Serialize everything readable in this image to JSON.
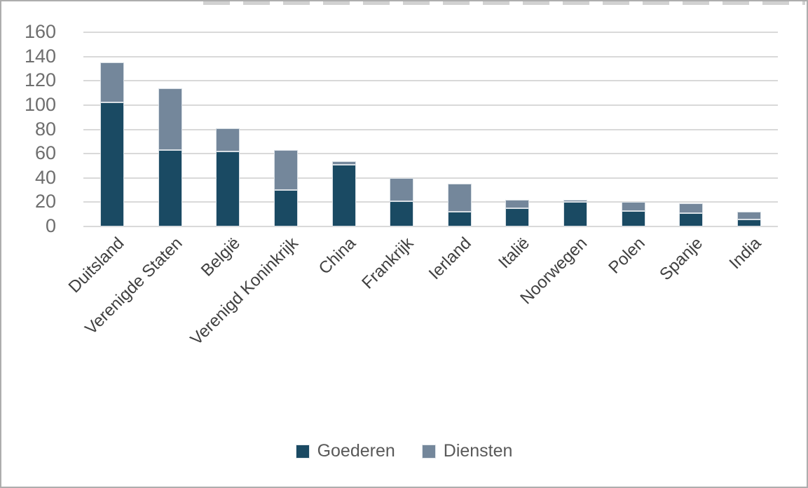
{
  "chart": {
    "background": "#FFFFFF",
    "frame_border_color": "#ADADAD",
    "gridline_color": "#D9D9D9",
    "ytick_color": "#6E6E6E",
    "category_label_color": "#404040",
    "legend_text_color": "#595959"
  },
  "chart_data": {
    "type": "bar",
    "variant": "stacked-column",
    "title": "",
    "xlabel": "",
    "ylabel": "",
    "categories": [
      "Duitsland",
      "Verenigde Staten",
      "België",
      "Verenigd Koninkrijk",
      "China",
      "Frankrijk",
      "Ierland",
      "Italië",
      "Noorwegen",
      "Polen",
      "Spanje",
      "India"
    ],
    "series": [
      {
        "name": "Goederen",
        "color": "#1A4A63",
        "values": [
          102,
          63,
          62,
          30,
          51,
          21,
          12,
          15,
          20,
          13,
          11,
          6
        ]
      },
      {
        "name": "Diensten",
        "color": "#74879B",
        "values": [
          33,
          51,
          19,
          33,
          3,
          19,
          23,
          7,
          2,
          7,
          8,
          6
        ]
      }
    ],
    "ylim": [
      0,
      160
    ],
    "yticks": [
      0,
      20,
      40,
      60,
      80,
      100,
      120,
      140,
      160
    ],
    "grid": true,
    "legend_position": "bottom",
    "x_label_rotation_deg": 45
  }
}
